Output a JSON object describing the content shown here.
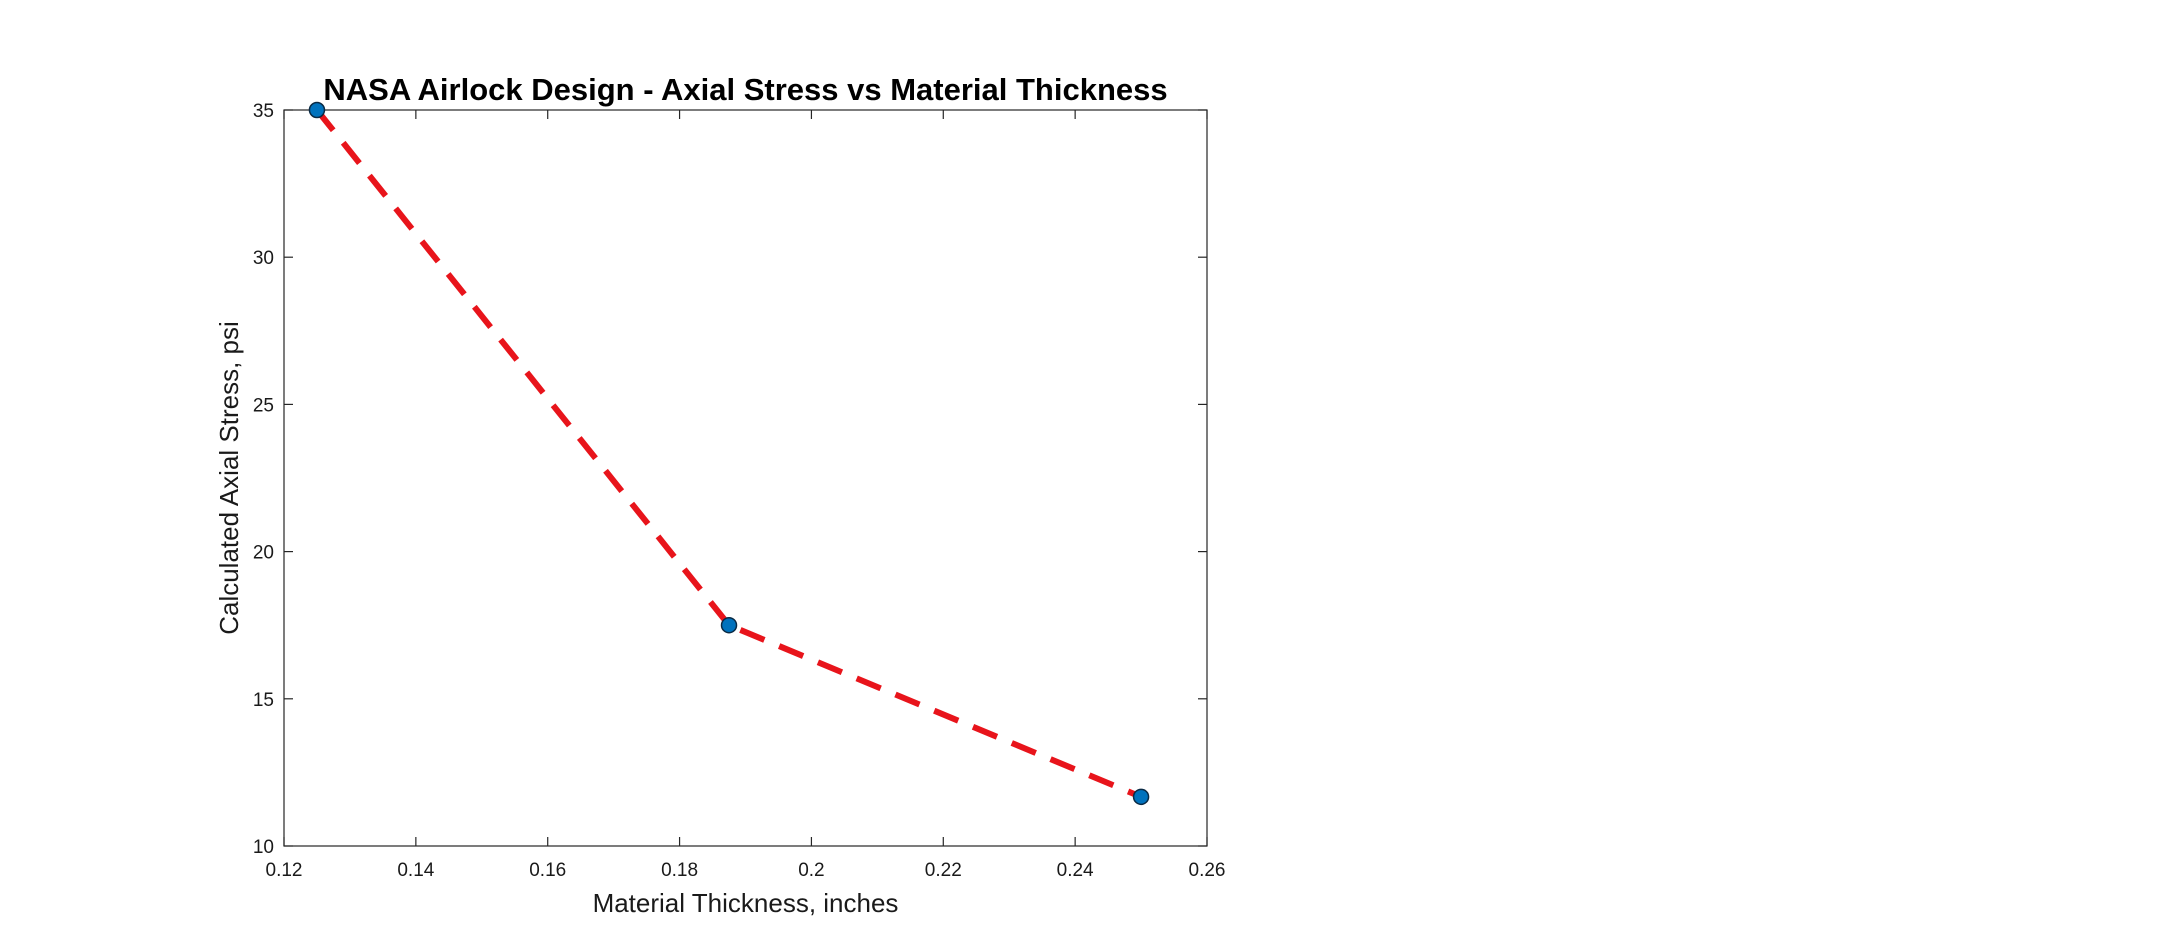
{
  "chart_data": {
    "type": "line",
    "title": "NASA Airlock Design - Axial Stress vs Material Thickness",
    "xlabel": "Material Thickness, inches",
    "ylabel": "Calculated Axial Stress, psi",
    "xlim": [
      0.12,
      0.26
    ],
    "ylim": [
      10,
      35
    ],
    "xticks": [
      0.12,
      0.14,
      0.16,
      0.18,
      0.2,
      0.22,
      0.24,
      0.26
    ],
    "xtick_labels": [
      "0.12",
      "0.14",
      "0.16",
      "0.18",
      "0.2",
      "0.22",
      "0.24",
      "0.26"
    ],
    "yticks": [
      10,
      15,
      20,
      25,
      30,
      35
    ],
    "ytick_labels": [
      "10",
      "15",
      "20",
      "25",
      "30",
      "35"
    ],
    "grid": false,
    "series": [
      {
        "x": [
          0.125,
          0.1875,
          0.25
        ],
        "y": [
          35,
          17.5,
          11.67
        ],
        "line_color": "#e8141b",
        "line_style": "dashed",
        "marker": "circle",
        "marker_color": "#0072bd"
      }
    ]
  }
}
